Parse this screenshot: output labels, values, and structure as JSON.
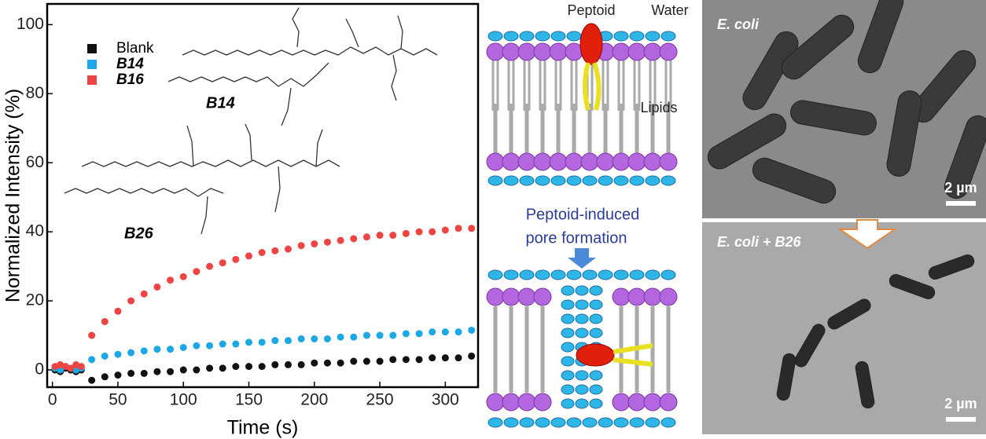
{
  "chart_data": {
    "type": "scatter",
    "x_label": "Time (s)",
    "y_label": "Normalized Intensity (%)",
    "xlim": [
      -4,
      325
    ],
    "ylim": [
      -5,
      106
    ],
    "xticks": [
      0,
      50,
      100,
      150,
      200,
      250,
      300
    ],
    "yticks": [
      0,
      20,
      40,
      60,
      80,
      100
    ],
    "legend": "upper left",
    "x": [
      2,
      6,
      10,
      14,
      18,
      22,
      30,
      40,
      50,
      60,
      70,
      80,
      90,
      100,
      110,
      120,
      130,
      140,
      150,
      160,
      170,
      180,
      190,
      200,
      210,
      220,
      230,
      240,
      250,
      260,
      270,
      280,
      290,
      300,
      310,
      320
    ],
    "series": [
      {
        "name": "Blank",
        "color": "#111111",
        "values": [
          0,
          -0.5,
          0.5,
          0,
          -0.5,
          0,
          -3,
          -2,
          -1.5,
          -1,
          -1,
          -0.5,
          -0.5,
          0,
          0,
          0.5,
          0.5,
          1,
          1,
          1,
          1.5,
          1.5,
          1.5,
          2,
          2,
          2,
          2.5,
          2.5,
          2.5,
          3,
          3,
          3,
          3.5,
          3.5,
          3.5,
          4
        ]
      },
      {
        "name": "B14",
        "color": "#1ca7e6",
        "values": [
          0.5,
          0,
          1,
          0.5,
          0,
          0.5,
          3,
          4,
          4.5,
          5,
          5.5,
          6,
          6,
          6.5,
          7,
          7,
          7.5,
          7.5,
          8,
          8,
          8.5,
          8.5,
          9,
          9,
          9,
          9.5,
          9.5,
          10,
          10,
          10,
          10.5,
          10.5,
          11,
          11,
          11,
          11.5
        ]
      },
      {
        "name": "B16",
        "color": "#ef4444",
        "values": [
          1,
          1.5,
          1,
          0.5,
          1.5,
          1,
          10,
          14,
          17,
          20,
          22,
          24,
          26,
          27,
          28.5,
          30,
          31,
          32,
          33,
          34,
          34.5,
          35,
          36,
          36.5,
          37,
          37.5,
          38,
          38.5,
          39,
          39,
          39.5,
          40,
          40,
          40.5,
          41,
          41
        ]
      }
    ]
  },
  "structures": [
    "B14",
    "B26"
  ],
  "diagram": {
    "peptoid": "Peptoid",
    "water": "Water",
    "lipids": "Lipids",
    "caption": [
      "Peptoid-induced",
      "pore formation"
    ]
  },
  "micrographs": [
    {
      "label": "E. coli",
      "scale": "2 µm"
    },
    {
      "label": "E. coli + B26",
      "scale": "2 µm"
    }
  ]
}
